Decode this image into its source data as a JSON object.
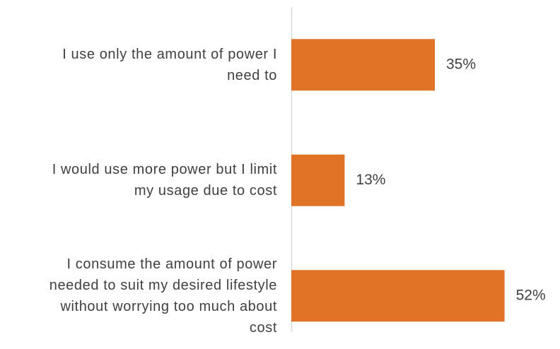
{
  "chart_data": {
    "type": "bar",
    "orientation": "horizontal",
    "categories": [
      "I use only the amount of power I need to",
      "I would use more power but I limit my usage due to cost",
      "I consume the amount of power needed to suit my desired lifestyle without worrying too much about cost"
    ],
    "values": [
      35,
      13,
      52
    ],
    "value_labels": [
      "35%",
      "13%",
      "52%"
    ],
    "color": "#e07325",
    "xlim": [
      0,
      65
    ],
    "grid": false
  }
}
